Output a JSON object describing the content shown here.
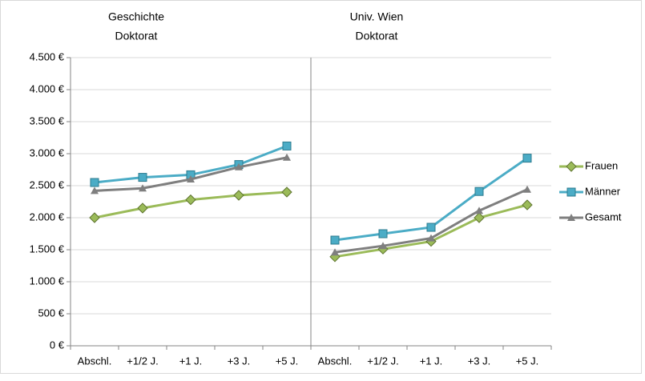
{
  "chart_data": [
    {
      "type": "line",
      "title": [
        "Geschichte",
        "Doktorat"
      ],
      "categories": [
        "Abschl.",
        "+1/2 J.",
        "+1 J.",
        "+3 J.",
        "+5 J."
      ],
      "ylim": [
        0,
        4500
      ],
      "yticks": [
        {
          "value": 0,
          "label": "0 €"
        },
        {
          "value": 500,
          "label": "500 €"
        },
        {
          "value": 1000,
          "label": "1.000 €"
        },
        {
          "value": 1500,
          "label": "1.500 €"
        },
        {
          "value": 2000,
          "label": "2.000 €"
        },
        {
          "value": 2500,
          "label": "2.500 €"
        },
        {
          "value": 3000,
          "label": "3.000 €"
        },
        {
          "value": 3500,
          "label": "3.500 €"
        },
        {
          "value": 4000,
          "label": "4.000 €"
        },
        {
          "value": 4500,
          "label": "4.500 €"
        }
      ],
      "grid": true,
      "legend": "right",
      "series": [
        {
          "name": "Frauen",
          "color": "#9bbb59",
          "marker": "diamond",
          "values": [
            2000,
            2150,
            2280,
            2350,
            2400
          ]
        },
        {
          "name": "Männer",
          "color": "#4bacc6",
          "marker": "square",
          "values": [
            2550,
            2630,
            2670,
            2830,
            3120
          ]
        },
        {
          "name": "Gesamt",
          "color": "#7f7f7f",
          "marker": "triangle",
          "values": [
            2420,
            2460,
            2600,
            2790,
            2940
          ]
        }
      ]
    },
    {
      "type": "line",
      "title": [
        "Univ. Wien",
        "Doktorat"
      ],
      "categories": [
        "Abschl.",
        "+1/2 J.",
        "+1 J.",
        "+3 J.",
        "+5 J."
      ],
      "ylim": [
        0,
        4500
      ],
      "series": [
        {
          "color": "#9bbb59",
          "marker": "diamond",
          "values": [
            1390,
            1510,
            1630,
            2000,
            2200
          ]
        },
        {
          "color": "#4bacc6",
          "marker": "square",
          "values": [
            1650,
            1750,
            1850,
            2410,
            2930
          ]
        },
        {
          "color": "#7f7f7f",
          "marker": "triangle",
          "values": [
            1460,
            1560,
            1680,
            2110,
            2440
          ]
        }
      ]
    }
  ]
}
